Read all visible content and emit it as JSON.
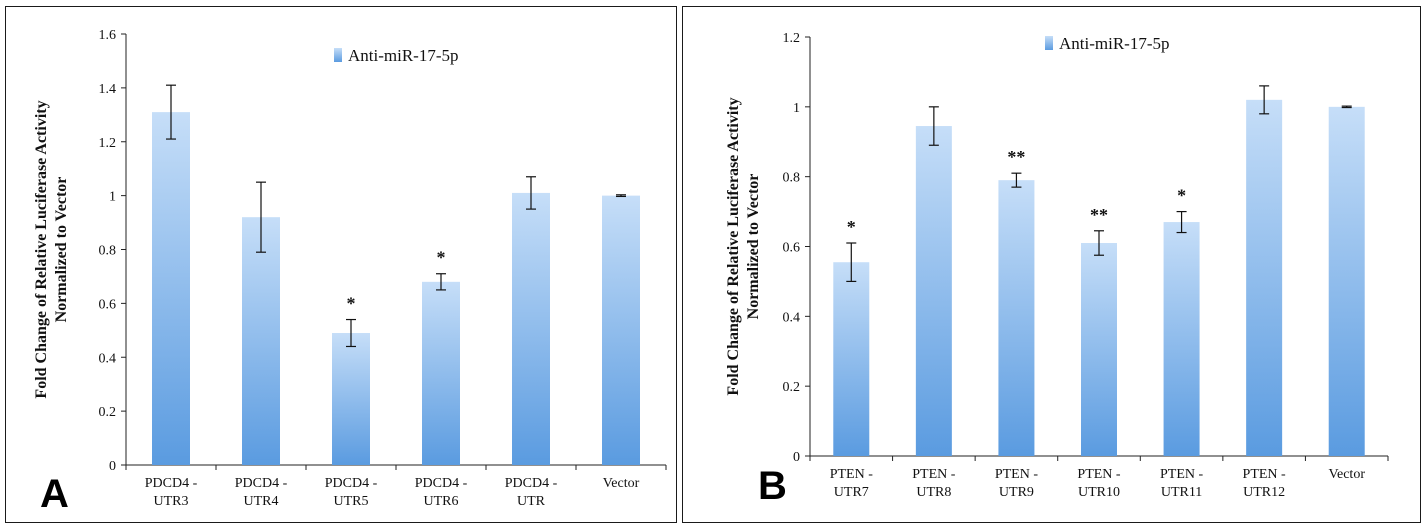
{
  "chart_data": [
    {
      "type": "bar",
      "panel_label": "A",
      "ylabel_lines": [
        "Fold Change of Relative Luciferase Activity",
        "Normalized to Vector"
      ],
      "ylim": [
        0,
        1.6
      ],
      "yticks": [
        0,
        0.2,
        0.4,
        0.6,
        0.8,
        1,
        1.2,
        1.4,
        1.6
      ],
      "ytick_labels": [
        "0",
        "0.2",
        "0.4",
        "0.6",
        "0.8",
        "1",
        "1.2",
        "1.4",
        "1.6"
      ],
      "categories": [
        [
          "PDCD4 -",
          "UTR3"
        ],
        [
          "PDCD4 -",
          "UTR4"
        ],
        [
          "PDCD4 -",
          "UTR5"
        ],
        [
          "PDCD4 -",
          "UTR6"
        ],
        [
          "PDCD4 -",
          "UTR"
        ],
        [
          "Vector"
        ]
      ],
      "series": [
        {
          "name": "Anti-miR-17-5p",
          "values": [
            1.31,
            0.92,
            0.49,
            0.68,
            1.01,
            1.0
          ],
          "errors": [
            0.1,
            0.13,
            0.05,
            0.03,
            0.06,
            0.003
          ]
        }
      ],
      "significance": [
        "",
        "",
        "*",
        "*",
        "",
        ""
      ],
      "legend": "top-center",
      "grid": false,
      "color": "#5a9be0"
    },
    {
      "type": "bar",
      "panel_label": "B",
      "ylabel_lines": [
        "Fold Change of Relative Luciferase Activity",
        "Normalized to Vector"
      ],
      "ylim": [
        0,
        1.2
      ],
      "yticks": [
        0,
        0.2,
        0.4,
        0.6,
        0.8,
        1,
        1.2
      ],
      "ytick_labels": [
        "0",
        "0.2",
        "0.4",
        "0.6",
        "0.8",
        "1",
        "1.2"
      ],
      "categories": [
        [
          "PTEN -",
          "UTR7"
        ],
        [
          "PTEN -",
          "UTR8"
        ],
        [
          "PTEN -",
          "UTR9"
        ],
        [
          "PTEN -",
          "UTR10"
        ],
        [
          "PTEN -",
          "UTR11"
        ],
        [
          "PTEN -",
          "UTR12"
        ],
        [
          "Vector"
        ]
      ],
      "series": [
        {
          "name": "Anti-miR-17-5p",
          "values": [
            0.555,
            0.945,
            0.79,
            0.61,
            0.67,
            1.02,
            1.0
          ],
          "errors": [
            0.055,
            0.055,
            0.02,
            0.035,
            0.03,
            0.04,
            0.002
          ]
        }
      ],
      "significance": [
        "*",
        "",
        "**",
        "**",
        "*",
        "",
        ""
      ],
      "legend": "top-center",
      "grid": false,
      "color": "#5a9be0"
    }
  ]
}
